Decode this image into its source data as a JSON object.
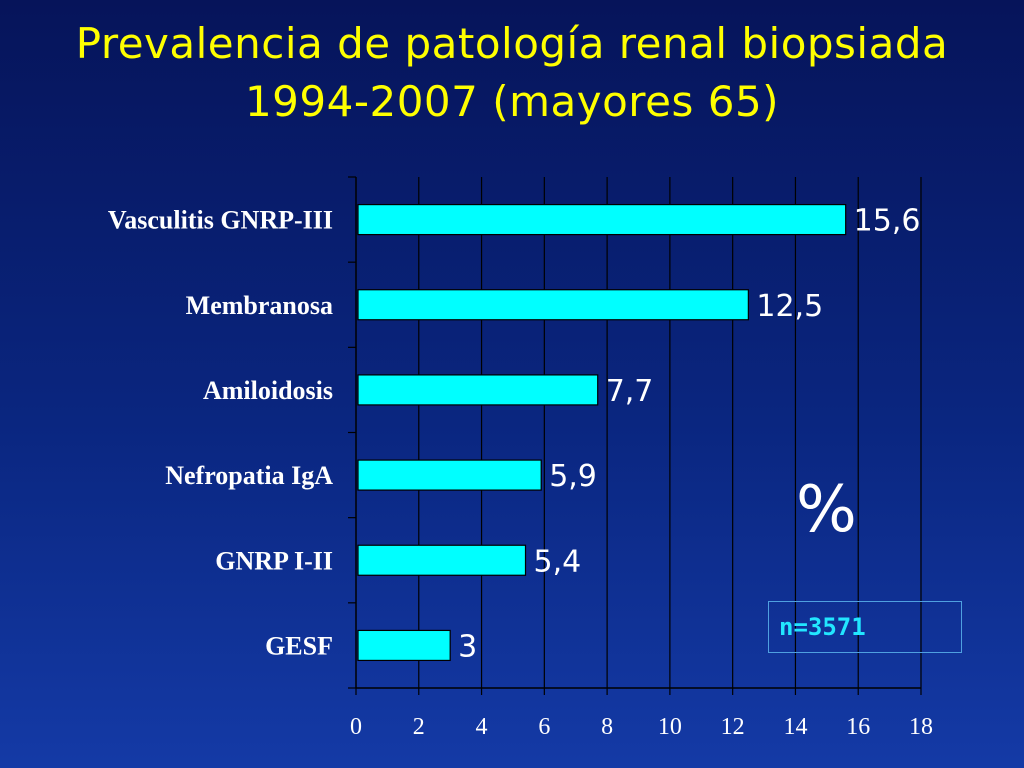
{
  "slide": {
    "title_line1": "Prevalencia de patología renal biopsiada",
    "title_line2": "1994-2007   (mayores 65)",
    "unit_symbol": "%",
    "sample_note": "n=3571"
  },
  "colors": {
    "background": "#0a2680",
    "title": "#ffff00",
    "bar": "#00ffff",
    "text": "#ffffff",
    "note_text": "#22e6ff"
  },
  "chart_data": {
    "type": "bar",
    "orientation": "horizontal",
    "categories": [
      "Vasculitis GNRP-III",
      "Membranosa",
      "Amiloidosis",
      "Nefropatia IgA",
      "GNRP I-II",
      "GESF"
    ],
    "values": [
      15.6,
      12.5,
      7.7,
      5.9,
      5.4,
      3
    ],
    "value_labels": [
      "15,6",
      "12,5",
      "7,7",
      "5,9",
      "5,4",
      "3"
    ],
    "xlim": [
      0,
      18
    ],
    "x_ticks": [
      0,
      2,
      4,
      6,
      8,
      10,
      12,
      14,
      16,
      18
    ],
    "grid": "vertical",
    "title": "",
    "xlabel": "",
    "ylabel": ""
  }
}
